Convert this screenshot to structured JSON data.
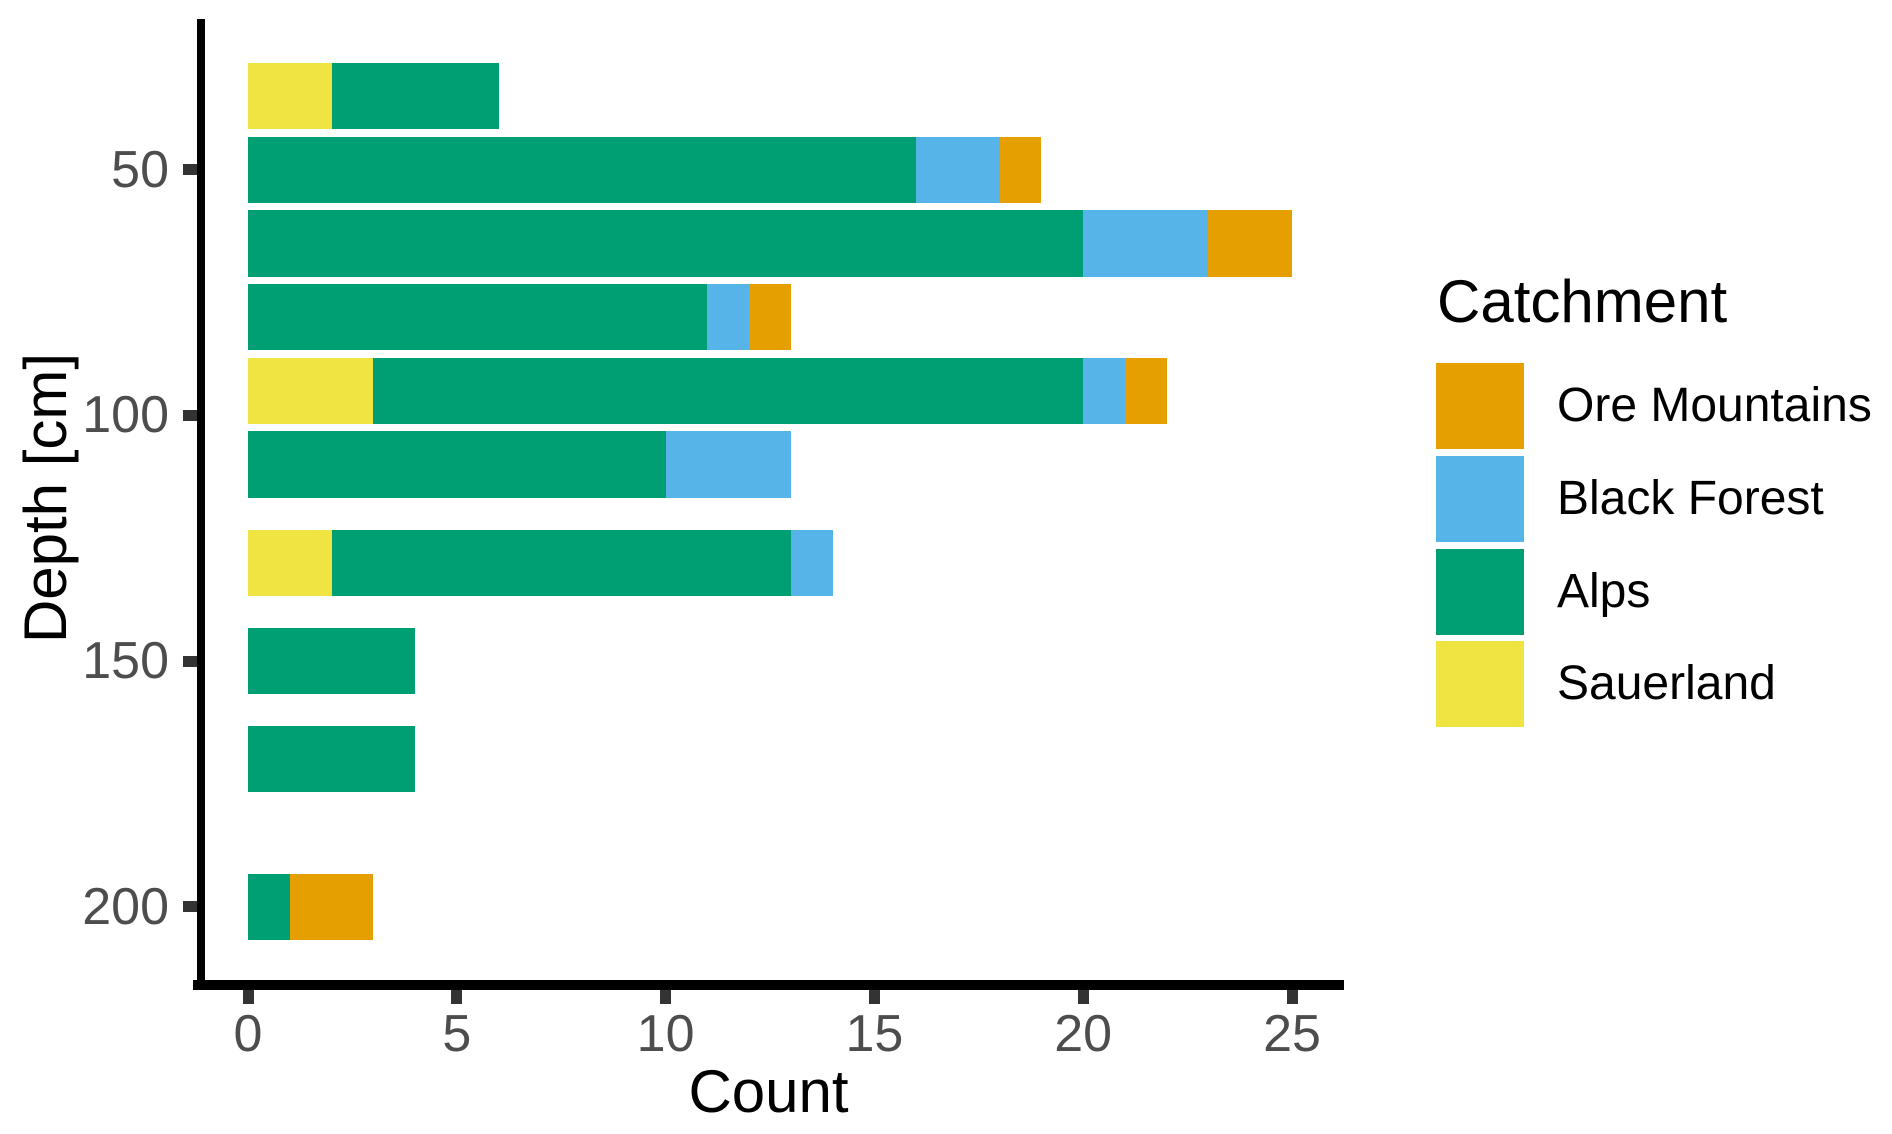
{
  "chart_data": {
    "type": "bar",
    "orientation": "horizontal",
    "stacked": true,
    "title": "",
    "xlabel": "Count",
    "ylabel": "Depth [cm]",
    "x_ticks": [
      0,
      5,
      10,
      15,
      20,
      25
    ],
    "xlim": [
      0,
      26.2
    ],
    "y_ticks": [
      50,
      100,
      150,
      200
    ],
    "ylim_depth_cm": [
      19,
      217
    ],
    "y_axis_reversed": true,
    "grid": false,
    "bar_thickness_cm": 13.5,
    "categories_depth_cm": [
      35,
      50,
      65,
      80,
      95,
      110,
      130,
      150,
      170,
      200
    ],
    "series": [
      {
        "name": "Sauerland",
        "color": "#F0E442",
        "values": [
          2,
          0,
          0,
          0,
          3,
          0,
          2,
          0,
          0,
          0
        ]
      },
      {
        "name": "Alps",
        "color": "#009E73",
        "values": [
          4,
          16,
          20,
          11,
          17,
          10,
          11,
          4,
          4,
          1
        ]
      },
      {
        "name": "Black Forest",
        "color": "#56B4E9",
        "values": [
          0,
          2,
          3,
          1,
          1,
          3,
          1,
          0,
          0,
          0
        ]
      },
      {
        "name": "Ore Mountains",
        "color": "#E69F00",
        "values": [
          0,
          1,
          2,
          1,
          1,
          0,
          0,
          0,
          0,
          2
        ]
      }
    ],
    "bar_totals": [
      6,
      19,
      25,
      13,
      22,
      13,
      14,
      4,
      4,
      3
    ],
    "legend": {
      "title": "Catchment",
      "position": "right",
      "items": [
        "Ore Mountains",
        "Black Forest",
        "Alps",
        "Sauerland"
      ]
    },
    "style": {
      "background": "#FFFFFF",
      "axis_line_color": "#000000",
      "tick_mark_color": "#333333",
      "tick_label_color": "#4D4D4D",
      "text_color": "#000000"
    }
  }
}
